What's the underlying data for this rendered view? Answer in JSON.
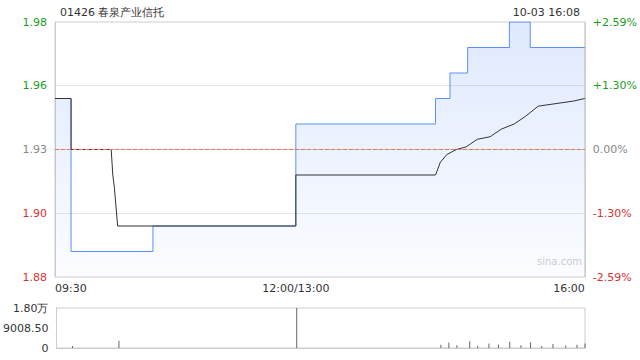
{
  "chart_data": [
    {
      "type": "line",
      "title": "01426 春泉产业信托",
      "date": "10-03 16:08",
      "watermark": "sina.com",
      "xlim": [
        0,
        330
      ],
      "xticks": [
        {
          "value": 0,
          "label": "09:30"
        },
        {
          "value": 150,
          "label": "12:00/13:00"
        },
        {
          "value": 330,
          "label": "16:00"
        }
      ],
      "ylim": [
        1.88,
        1.98
      ],
      "yticks": [
        1.88,
        {
          "value": 1.905,
          "label": "1.90"
        },
        1.93,
        {
          "value": 1.955,
          "label": "1.96"
        },
        1.98
      ],
      "y2lim": [
        -2.59,
        2.59
      ],
      "y2ticks": [
        {
          "value": -2.59,
          "label": "-2.59%"
        },
        {
          "value": -1.3,
          "label": "-1.30%"
        },
        {
          "value": 0,
          "label": "0.00%"
        },
        {
          "value": 1.3,
          "label": "+1.30%"
        },
        {
          "value": 2.59,
          "label": "+2.59%"
        }
      ],
      "prev_close": 1.93,
      "grid": true,
      "series": [
        {
          "type": "area",
          "line_style": "step",
          "color": "#5b8ff9",
          "x": [
            0,
            10,
            61,
            150,
            237,
            246,
            257,
            283,
            296,
            330
          ],
          "values": [
            1.95,
            1.89,
            1.9,
            1.94,
            1.95,
            1.96,
            1.97,
            1.98,
            1.97,
            1.97
          ]
        },
        {
          "type": "line",
          "line_style": "solid",
          "color": "#333333",
          "x": [
            0,
            10,
            10,
            35,
            36,
            37,
            39,
            150,
            150,
            237,
            240,
            244,
            250,
            256,
            263,
            271,
            278,
            286,
            293,
            301,
            312,
            323,
            330
          ],
          "values": [
            1.95,
            1.95,
            1.93,
            1.93,
            1.92,
            1.915,
            1.9,
            1.9,
            1.92,
            1.92,
            1.925,
            1.928,
            1.93,
            1.931,
            1.934,
            1.935,
            1.938,
            1.94,
            1.943,
            1.947,
            1.948,
            1.949,
            1.95
          ]
        }
      ]
    },
    {
      "type": "bar",
      "xlim": [
        0,
        330
      ],
      "ylim": [
        0,
        18017
      ],
      "yticks": [
        0,
        {
          "value": 9008.5,
          "label": "9008.50"
        },
        {
          "value": 18017,
          "label": "1.80万"
        }
      ],
      "tick_labels": "y",
      "color": "#666666",
      "x": [
        10,
        39,
        150,
        240,
        245,
        250,
        258,
        263,
        270,
        276,
        283,
        290,
        296,
        303,
        310,
        318,
        325,
        330
      ],
      "values": [
        900,
        3300,
        18000,
        1500,
        2500,
        1200,
        3000,
        1000,
        2000,
        1500,
        2800,
        1200,
        2600,
        900,
        1800,
        1100,
        1500,
        2000
      ]
    }
  ]
}
